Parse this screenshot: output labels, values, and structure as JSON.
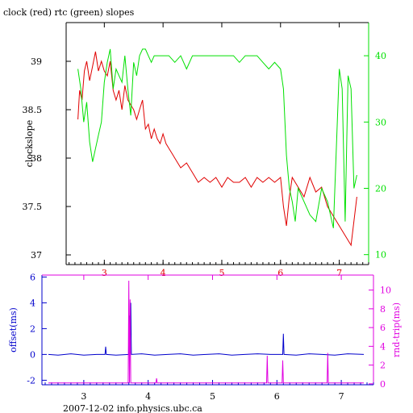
{
  "title": "clock (red) rtc (green) slopes",
  "footer": "2007-12-02 info.physics.ubc.ca",
  "colors": {
    "clock": "#e00000",
    "rtc": "#00e000",
    "offset": "#0000cc",
    "roundtrip": "#e000e0",
    "frame": "#000000"
  },
  "chart_data": [
    {
      "type": "line",
      "ylabel": "clockslope",
      "y2label": "",
      "xlim": [
        2.35,
        7.5
      ],
      "ylim": [
        36.9,
        39.4
      ],
      "y2lim": [
        8.5,
        45
      ],
      "xticks": [
        3,
        4,
        5,
        6,
        7
      ],
      "yticks": [
        37,
        37.5,
        38,
        38.5,
        39
      ],
      "y2ticks": [
        10,
        20,
        30,
        40
      ],
      "grid": false,
      "series": [
        {
          "name": "clock",
          "axis": "left",
          "color": "red",
          "x": [
            2.55,
            2.58,
            2.62,
            2.66,
            2.7,
            2.75,
            2.8,
            2.85,
            2.9,
            2.95,
            3.0,
            3.05,
            3.1,
            3.15,
            3.2,
            3.25,
            3.3,
            3.35,
            3.4,
            3.45,
            3.5,
            3.55,
            3.6,
            3.65,
            3.7,
            3.75,
            3.8,
            3.85,
            3.9,
            3.95,
            4.0,
            4.05,
            4.1,
            4.15,
            4.2,
            4.3,
            4.4,
            4.5,
            4.6,
            4.7,
            4.8,
            4.9,
            5.0,
            5.1,
            5.2,
            5.3,
            5.4,
            5.5,
            5.6,
            5.7,
            5.8,
            5.9,
            6.0,
            6.05,
            6.1,
            6.15,
            6.2,
            6.3,
            6.4,
            6.5,
            6.6,
            6.7,
            6.8,
            6.9,
            7.0,
            7.1,
            7.2,
            7.3
          ],
          "values": [
            38.4,
            38.7,
            38.6,
            38.9,
            39.0,
            38.8,
            38.95,
            39.1,
            38.9,
            39.0,
            38.9,
            38.85,
            39.0,
            38.7,
            38.6,
            38.7,
            38.5,
            38.75,
            38.6,
            38.55,
            38.5,
            38.4,
            38.5,
            38.6,
            38.3,
            38.35,
            38.2,
            38.3,
            38.2,
            38.15,
            38.25,
            38.15,
            38.1,
            38.05,
            38.0,
            37.9,
            37.95,
            37.85,
            37.75,
            37.8,
            37.75,
            37.8,
            37.7,
            37.8,
            37.75,
            37.75,
            37.8,
            37.7,
            37.8,
            37.75,
            37.8,
            37.75,
            37.8,
            37.5,
            37.3,
            37.6,
            37.8,
            37.7,
            37.6,
            37.8,
            37.65,
            37.7,
            37.5,
            37.4,
            37.3,
            37.2,
            37.1,
            37.6
          ]
        },
        {
          "name": "rtc",
          "axis": "right",
          "color": "green",
          "x": [
            2.55,
            2.6,
            2.65,
            2.7,
            2.75,
            2.8,
            2.85,
            2.9,
            2.95,
            3.0,
            3.05,
            3.1,
            3.15,
            3.2,
            3.25,
            3.3,
            3.35,
            3.4,
            3.45,
            3.5,
            3.55,
            3.6,
            3.65,
            3.7,
            3.75,
            3.8,
            3.85,
            3.9,
            3.95,
            4.0,
            4.1,
            4.2,
            4.3,
            4.4,
            4.5,
            4.6,
            4.7,
            4.8,
            4.9,
            5.0,
            5.1,
            5.2,
            5.3,
            5.4,
            5.5,
            5.6,
            5.7,
            5.8,
            5.9,
            6.0,
            6.05,
            6.1,
            6.15,
            6.2,
            6.25,
            6.3,
            6.4,
            6.5,
            6.6,
            6.7,
            6.8,
            6.9,
            7.0,
            7.05,
            7.1,
            7.15,
            7.2,
            7.25,
            7.3
          ],
          "values": [
            38,
            35,
            30,
            33,
            27,
            24,
            26,
            28,
            30,
            36,
            39,
            41,
            35,
            38,
            37,
            36,
            40,
            35,
            31,
            39,
            37,
            40,
            41,
            41,
            40,
            39,
            40,
            40,
            40,
            40,
            40,
            39,
            40,
            38,
            40,
            40,
            40,
            40,
            40,
            40,
            40,
            40,
            39,
            40,
            40,
            40,
            39,
            38,
            39,
            38,
            35,
            25,
            20,
            18,
            15,
            20,
            18,
            16,
            15,
            20,
            18,
            14,
            38,
            35,
            15,
            37,
            35,
            20,
            22
          ]
        }
      ]
    },
    {
      "type": "line",
      "ylabel": "offset(ms)",
      "y2label": "rnd-trip(ms)",
      "xlim": [
        2.35,
        7.5
      ],
      "ylim": [
        -2.35,
        6.15
      ],
      "y2lim": [
        -0.1,
        11.6
      ],
      "xticks": [
        3,
        4,
        5,
        6,
        7
      ],
      "yticks": [
        -2,
        0,
        2,
        4,
        6
      ],
      "y2ticks": [
        0,
        2,
        4,
        6,
        8,
        10
      ],
      "grid": false,
      "series": [
        {
          "name": "offset",
          "axis": "left",
          "color": "blue",
          "x": [
            2.45,
            2.6,
            2.8,
            3.0,
            3.2,
            3.33,
            3.34,
            3.35,
            3.5,
            3.7,
            3.71,
            3.72,
            3.73,
            3.74,
            3.9,
            4.1,
            4.3,
            4.5,
            4.7,
            4.9,
            5.1,
            5.3,
            5.5,
            5.7,
            5.9,
            6.09,
            6.1,
            6.11,
            6.3,
            6.5,
            6.7,
            6.9,
            7.1,
            7.35
          ],
          "values": [
            0.0,
            -0.05,
            0.05,
            -0.05,
            0.0,
            0.0,
            0.6,
            0.0,
            -0.05,
            0.0,
            3.0,
            0.2,
            4.0,
            0.0,
            0.05,
            -0.05,
            0.0,
            0.05,
            -0.05,
            0.0,
            0.05,
            -0.05,
            0.0,
            0.05,
            0.0,
            0.0,
            1.6,
            0.0,
            -0.05,
            0.05,
            0.0,
            -0.05,
            0.05,
            0.0
          ]
        },
        {
          "name": "round-trip",
          "axis": "right",
          "color": "magenta",
          "x": [
            2.45,
            3.69,
            3.7,
            3.71,
            3.72,
            3.73,
            4.12,
            4.13,
            4.14,
            5.84,
            5.85,
            5.86,
            6.08,
            6.09,
            6.1,
            6.78,
            6.79,
            6.8,
            7.35
          ],
          "values": [
            0.1,
            0.1,
            11.0,
            0.1,
            9.0,
            0.1,
            0.1,
            0.6,
            0.1,
            0.1,
            3.0,
            0.1,
            0.1,
            2.5,
            0.1,
            0.1,
            3.3,
            0.1,
            0.1
          ]
        }
      ]
    }
  ]
}
